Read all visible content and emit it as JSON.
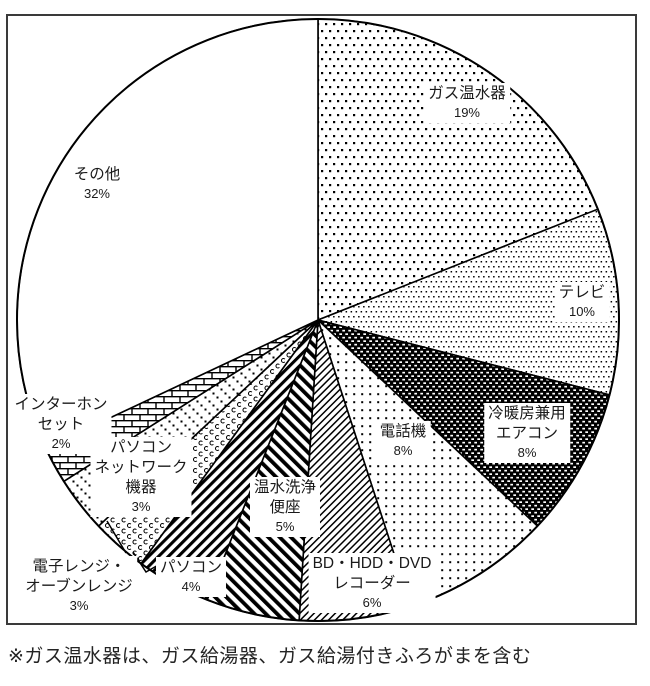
{
  "chart_data": {
    "type": "pie",
    "title": "",
    "direction": "clockwise",
    "start_angle_deg": 0,
    "legend_position": "none",
    "categories": [
      "ガス温水器",
      "テレビ",
      "冷暖房兼用エアコン",
      "電話機",
      "BD・HDD・DVDレコーダー",
      "温水洗浄便座",
      "パソコン",
      "電子レンジ・オーブンレンジ",
      "パソコンネットワーク機器",
      "インターホンセット",
      "その他"
    ],
    "values": [
      19,
      10,
      8,
      8,
      6,
      5,
      4,
      3,
      3,
      2,
      32
    ],
    "slices": [
      {
        "label": "ガス温水器",
        "value_pct": 19,
        "pattern": "dots-medium",
        "label_lines": [
          "ガス温水器",
          "19%"
        ]
      },
      {
        "label": "テレビ",
        "value_pct": 10,
        "pattern": "dots-fine",
        "label_lines": [
          "テレビ",
          "10%"
        ]
      },
      {
        "label": "冷暖房兼用エアコン",
        "value_pct": 8,
        "pattern": "dots-inverse",
        "label_lines": [
          "冷暖房兼用",
          "エアコン",
          "8%"
        ]
      },
      {
        "label": "電話機",
        "value_pct": 8,
        "pattern": "dots-sparse",
        "label_lines": [
          "電話機",
          "8%"
        ]
      },
      {
        "label": "BD・HDD・DVDレコーダー",
        "value_pct": 6,
        "pattern": "stripes-thin-fwd",
        "label_lines": [
          "BD・HDD・DVD",
          "レコーダー",
          "6%"
        ]
      },
      {
        "label": "温水洗浄便座",
        "value_pct": 5,
        "pattern": "stripes-thick-back",
        "label_lines": [
          "温水洗浄",
          "便座",
          "5%"
        ]
      },
      {
        "label": "パソコン",
        "value_pct": 4,
        "pattern": "stripes-thick-fwd",
        "label_lines": [
          "パソコン",
          "4%"
        ]
      },
      {
        "label": "電子レンジ・オーブンレンジ",
        "value_pct": 3,
        "pattern": "scales",
        "label_lines": [
          "電子レンジ・",
          "オーブンレンジ",
          "3%"
        ]
      },
      {
        "label": "パソコンネットワーク機器",
        "value_pct": 3,
        "pattern": "dots-diagonal",
        "label_lines": [
          "パソコン",
          "ネットワーク",
          "機器",
          "3%"
        ]
      },
      {
        "label": "インターホンセット",
        "value_pct": 2,
        "pattern": "brick",
        "label_lines": [
          "インターホン",
          "セット",
          "2%"
        ]
      },
      {
        "label": "その他",
        "value_pct": 32,
        "pattern": "plain",
        "label_lines": [
          "その他",
          "32%"
        ]
      }
    ]
  },
  "footnote": "※ガス温水器は、ガス給湯器、ガス給湯付きふろがまを含む",
  "colors": {
    "ink": "#000000",
    "text": "#1a1a1a",
    "background": "#ffffff",
    "frame": "#3a3a3a"
  }
}
